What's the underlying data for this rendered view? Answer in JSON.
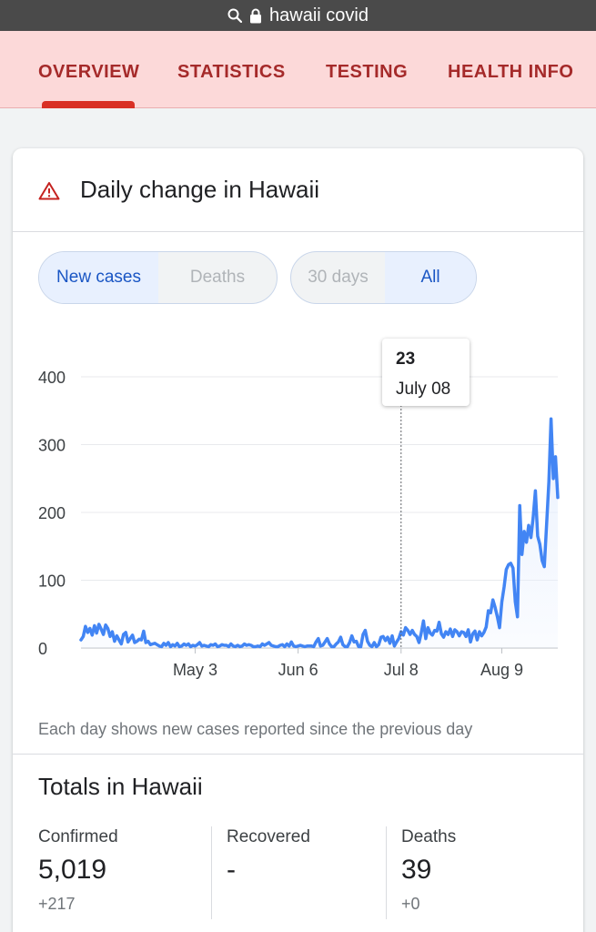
{
  "address_bar": {
    "query": "hawaii covid",
    "icons": [
      "search-icon",
      "lock-icon"
    ]
  },
  "tabs": [
    "OVERVIEW",
    "STATISTICS",
    "TESTING",
    "HEALTH INFO"
  ],
  "partial_heading": "Statistics",
  "card": {
    "title": "Daily change in Hawaii",
    "icon": "warning-icon",
    "metric_toggle": {
      "options": [
        "New cases",
        "Deaths"
      ],
      "selected": "New cases"
    },
    "range_toggle": {
      "options": [
        "30 days",
        "All"
      ],
      "selected": "All"
    },
    "tooltip": {
      "value": "23",
      "date": "July 08"
    },
    "note": "Each day shows new cases reported since the previous day"
  },
  "chart_data": {
    "type": "line",
    "title": "",
    "xlabel": "",
    "ylabel": "",
    "y_ticks": [
      "0",
      "100",
      "200",
      "300",
      "400"
    ],
    "x_ticks": [
      "May 3",
      "Jun 6",
      "Jul 8",
      "Aug 9"
    ],
    "ylim": [
      0,
      400
    ],
    "grid": true,
    "colors": {
      "line": "#4285f4",
      "fill": "#e8f0fe"
    },
    "series": [
      {
        "name": "",
        "values": [
          12,
          17,
          32,
          23,
          29,
          19,
          33,
          22,
          35,
          28,
          20,
          34,
          29,
          17,
          24,
          10,
          18,
          12,
          6,
          20,
          23,
          9,
          14,
          19,
          8,
          10,
          13,
          12,
          25,
          8,
          10,
          5,
          6,
          7,
          5,
          3,
          2,
          7,
          4,
          8,
          2,
          5,
          3,
          7,
          2,
          3,
          6,
          4,
          6,
          2,
          4,
          3,
          5,
          8,
          3,
          4,
          3,
          2,
          5,
          4,
          6,
          2,
          3,
          5,
          4,
          4,
          2,
          6,
          3,
          2,
          4,
          2,
          3,
          6,
          4,
          5,
          4,
          2,
          2,
          3,
          2,
          6,
          4,
          6,
          8,
          4,
          3,
          2,
          2,
          4,
          5,
          2,
          6,
          3,
          9,
          3,
          2,
          3,
          4,
          3,
          2,
          3,
          3,
          3,
          2,
          9,
          14,
          3,
          4,
          9,
          14,
          6,
          2,
          2,
          6,
          9,
          16,
          5,
          2,
          2,
          8,
          18,
          9,
          10,
          2,
          2,
          20,
          26,
          10,
          4,
          2,
          8,
          2,
          5,
          16,
          17,
          11,
          16,
          7,
          18,
          3,
          9,
          14,
          24,
          19,
          30,
          26,
          20,
          26,
          20,
          17,
          8,
          22,
          40,
          14,
          30,
          22,
          19,
          26,
          25,
          38,
          21,
          16,
          24,
          20,
          28,
          17,
          27,
          24,
          18,
          24,
          23,
          17,
          27,
          9,
          21,
          25,
          12,
          24,
          18,
          23,
          31,
          55,
          52,
          71,
          60,
          46,
          30,
          68,
          90,
          116,
          123,
          125,
          118,
          68,
          46,
          210,
          138,
          172,
          156,
          181,
          163,
          192,
          232,
          165,
          153,
          129,
          120,
          182,
          245,
          338,
          250,
          282,
          222
        ]
      }
    ]
  },
  "totals": {
    "title": "Totals in Hawaii",
    "items": [
      {
        "label": "Confirmed",
        "value": "5,019",
        "change": "+217"
      },
      {
        "label": "Recovered",
        "value": "-",
        "change": ""
      },
      {
        "label": "Deaths",
        "value": "39",
        "change": "+0"
      }
    ]
  }
}
